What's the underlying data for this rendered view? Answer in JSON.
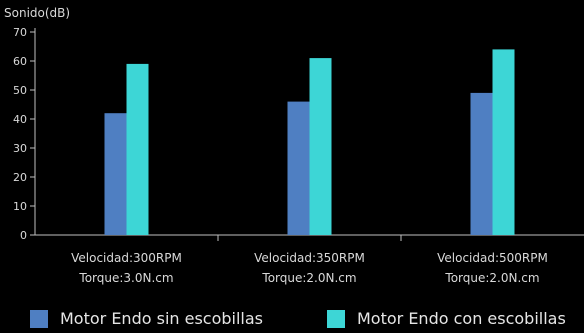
{
  "chart_data": {
    "type": "bar",
    "ylabel": "Sonido(dB)",
    "ylim": [
      0,
      70
    ],
    "yticks": [
      0,
      10,
      20,
      30,
      40,
      50,
      60,
      70
    ],
    "grid": false,
    "legend_position": "bottom",
    "categories": [
      [
        "Velocidad:300RPM",
        "Torque:3.0N.cm"
      ],
      [
        "Velocidad:350RPM",
        "Torque:2.0N.cm"
      ],
      [
        "Velocidad:500RPM",
        "Torque:2.0N.cm"
      ]
    ],
    "series": [
      {
        "name": "Motor Endo sin escobillas",
        "color": "#4f7fc2",
        "values": [
          42,
          46,
          49
        ]
      },
      {
        "name": "Motor Endo con escobillas",
        "color": "#3dd6d6",
        "values": [
          59,
          61,
          64
        ]
      }
    ]
  }
}
